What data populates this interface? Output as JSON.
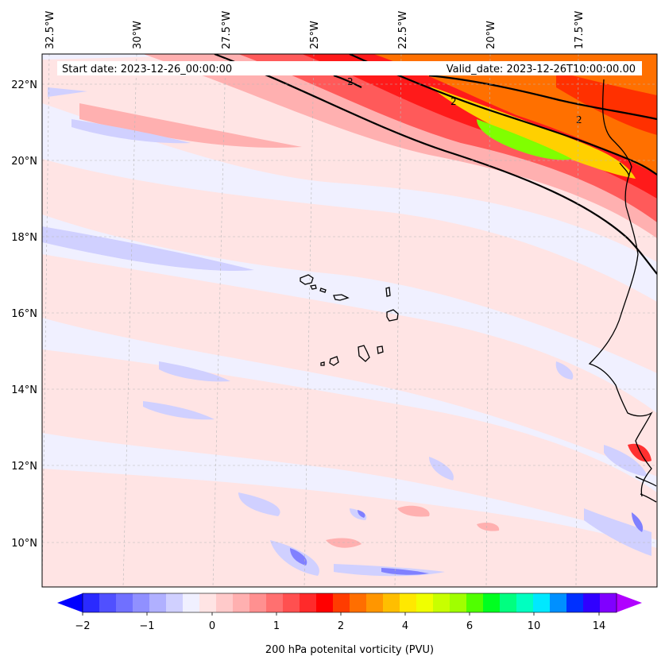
{
  "header": {
    "start_date": "Start date: 2023-12-26_00:00:00",
    "valid_date": "Valid_date: 2023-12-26T10:00:00.00"
  },
  "map": {
    "lon_labels": [
      "32.5°W",
      "30°W",
      "27.5°W",
      "25°W",
      "22.5°W",
      "20°W",
      "17.5°W"
    ],
    "lat_labels": [
      "22°N",
      "20°N",
      "18°N",
      "16°N",
      "14°N",
      "12°N",
      "10°N"
    ],
    "contour_label": "2",
    "colors": {
      "negative": "#d0d0ff",
      "negative_strong": "#8080ff",
      "near_zero": "#f0f0ff",
      "low_positive": "#ffe4e4",
      "mid_positive": "#ffb0b0",
      "red": "#ff2a2a",
      "orange": "#ff8c00",
      "yellow": "#ffe800",
      "green": "#80ff00"
    }
  },
  "colorbar": {
    "label": "200 hPa potenital vorticity (PVU)",
    "tick_labels": [
      "−2",
      "−1",
      "0",
      "1",
      "2",
      "4",
      "6",
      "10",
      "14"
    ],
    "colors": [
      "#0000ff",
      "#2a2aff",
      "#5050ff",
      "#7070ff",
      "#9090ff",
      "#b0b0ff",
      "#d0d0ff",
      "#f0f0ff",
      "#ffe4e4",
      "#ffcaca",
      "#ffb0b0",
      "#ff9090",
      "#ff7070",
      "#ff5050",
      "#ff2a2a",
      "#ff0000",
      "#ff3c00",
      "#ff6e00",
      "#ff9600",
      "#ffbe00",
      "#ffe800",
      "#f0ff00",
      "#c8ff00",
      "#a0ff00",
      "#50ff00",
      "#00ff20",
      "#00ff80",
      "#00ffc0",
      "#00e8ff",
      "#0090ff",
      "#0030ff",
      "#3000ff",
      "#8000ff",
      "#b000ff"
    ]
  }
}
